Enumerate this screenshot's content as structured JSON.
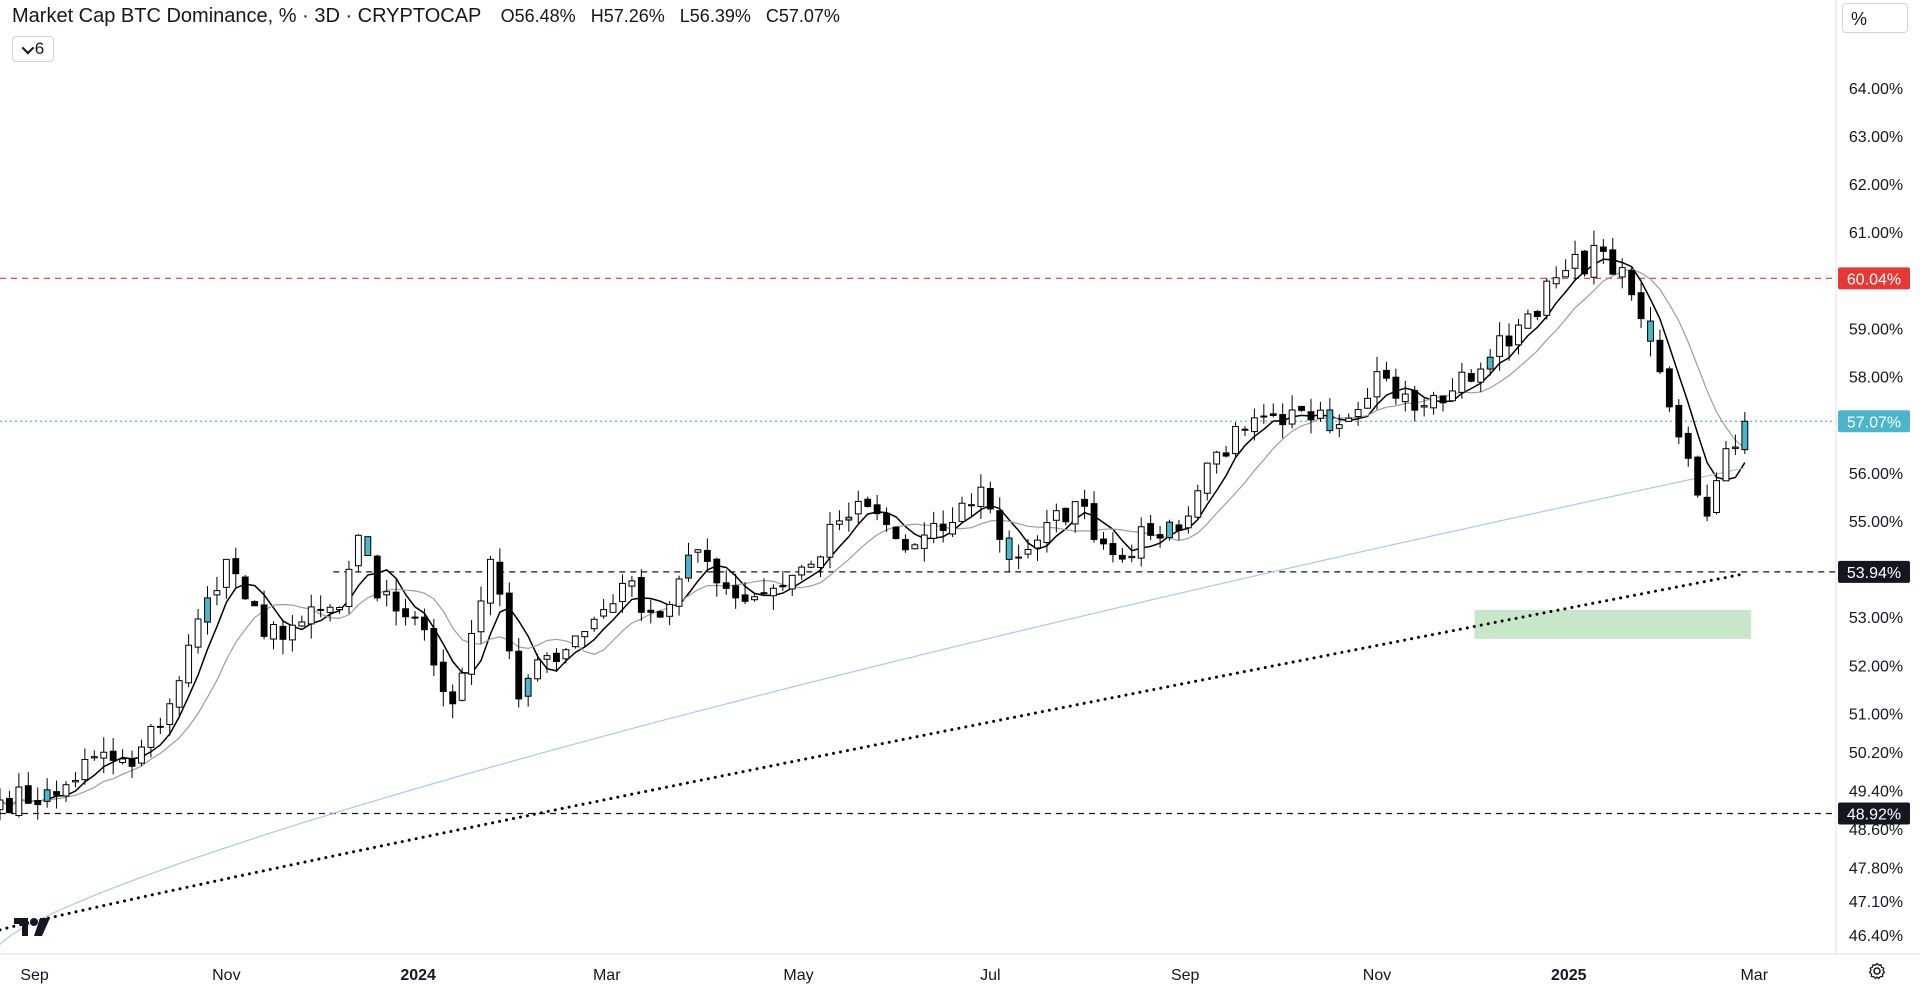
{
  "header": {
    "symbol": "Market Cap BTC Dominance, % · 3D · CRYPTOCAP",
    "o_label": "O",
    "o": "56.48%",
    "h_label": "H",
    "h": "57.26%",
    "l_label": "L",
    "l": "56.39%",
    "c_label": "C",
    "c": "57.07%"
  },
  "indicators_toggle": {
    "count": "6"
  },
  "scale_mode": "%",
  "chart_data": {
    "type": "candlestick",
    "ylim": [
      46.0,
      65.2
    ],
    "y_ticks": [
      {
        "value": 46.4,
        "label": "46.40%"
      },
      {
        "value": 47.1,
        "label": "47.10%"
      },
      {
        "value": 47.8,
        "label": "47.80%"
      },
      {
        "value": 48.6,
        "label": "48.60%"
      },
      {
        "value": 49.4,
        "label": "49.40%"
      },
      {
        "value": 50.2,
        "label": "50.20%"
      },
      {
        "value": 51.0,
        "label": "51.00%"
      },
      {
        "value": 52.0,
        "label": "52.00%"
      },
      {
        "value": 53.0,
        "label": "53.00%"
      },
      {
        "value": 55.0,
        "label": "55.00%"
      },
      {
        "value": 56.0,
        "label": "56.00%"
      },
      {
        "value": 58.0,
        "label": "58.00%"
      },
      {
        "value": 59.0,
        "label": "59.00%"
      },
      {
        "value": 61.0,
        "label": "61.00%"
      },
      {
        "value": 62.0,
        "label": "62.00%"
      },
      {
        "value": 63.0,
        "label": "63.00%"
      },
      {
        "value": 64.0,
        "label": "64.00%"
      }
    ],
    "x_ticks": [
      {
        "date": "2023-09-01",
        "label": "Sep",
        "bold": false
      },
      {
        "date": "2023-11-01",
        "label": "Nov",
        "bold": false
      },
      {
        "date": "2024-01-01",
        "label": "2024",
        "bold": true
      },
      {
        "date": "2024-03-01",
        "label": "Mar",
        "bold": false
      },
      {
        "date": "2024-05-01",
        "label": "May",
        "bold": false
      },
      {
        "date": "2024-07-01",
        "label": "Jul",
        "bold": false
      },
      {
        "date": "2024-09-01",
        "label": "Sep",
        "bold": false
      },
      {
        "date": "2024-11-01",
        "label": "Nov",
        "bold": false
      },
      {
        "date": "2025-01-01",
        "label": "2025",
        "bold": true
      },
      {
        "date": "2025-03-01",
        "label": "Mar",
        "bold": false
      }
    ],
    "x_range": [
      "2023-08-21",
      "2025-03-27"
    ],
    "first_candle_date": "2023-08-21",
    "candle_interval_days": 3,
    "close_anchors": [
      [
        0,
        49.2
      ],
      [
        6,
        49.3
      ],
      [
        10,
        50.1
      ],
      [
        14,
        49.9
      ],
      [
        18,
        51.2
      ],
      [
        22,
        53.4
      ],
      [
        24,
        54.2
      ],
      [
        28,
        52.6
      ],
      [
        32,
        52.9
      ],
      [
        36,
        53.2
      ],
      [
        38,
        54.7
      ],
      [
        40,
        53.4
      ],
      [
        44,
        53.0
      ],
      [
        48,
        51.2
      ],
      [
        52,
        54.2
      ],
      [
        55,
        51.3
      ],
      [
        58,
        52.2
      ],
      [
        62,
        52.7
      ],
      [
        66,
        53.7
      ],
      [
        70,
        53.0
      ],
      [
        74,
        54.4
      ],
      [
        78,
        53.4
      ],
      [
        82,
        53.6
      ],
      [
        86,
        54.1
      ],
      [
        89,
        55.0
      ],
      [
        92,
        55.3
      ],
      [
        96,
        54.4
      ],
      [
        100,
        54.8
      ],
      [
        104,
        55.7
      ],
      [
        107,
        54.2
      ],
      [
        110,
        54.6
      ],
      [
        114,
        55.4
      ],
      [
        118,
        54.3
      ],
      [
        122,
        54.7
      ],
      [
        126,
        55.1
      ],
      [
        128,
        56.2
      ],
      [
        132,
        56.9
      ],
      [
        136,
        57.0
      ],
      [
        140,
        57.3
      ],
      [
        142,
        57.0
      ],
      [
        146,
        58.1
      ],
      [
        150,
        57.3
      ],
      [
        154,
        57.7
      ],
      [
        158,
        58.4
      ],
      [
        162,
        59.3
      ],
      [
        166,
        60.2
      ],
      [
        170,
        60.6
      ],
      [
        173,
        59.7
      ],
      [
        176,
        58.1
      ],
      [
        179,
        56.3
      ],
      [
        181,
        55.1
      ],
      [
        183,
        56.5
      ],
      [
        185,
        57.07
      ]
    ],
    "volatility": 0.35,
    "moving_averages": [
      {
        "period": 5,
        "color": "#000000",
        "width": 1.5
      },
      {
        "period": 10,
        "color": "#9e9e9e",
        "width": 1.2
      },
      {
        "period": 60,
        "color": "#a9c8ec",
        "width": 1.2
      },
      {
        "period": 120,
        "color": "#000000",
        "width": 3,
        "dotted": true
      }
    ],
    "horizontal_lines": [
      {
        "value": 60.04,
        "label": "60.04%",
        "color": "#e53935",
        "style": "dashed",
        "label_bg": "#e53935"
      },
      {
        "value": 57.07,
        "label": "57.07%",
        "color": "#4fb8c9",
        "style": "dotted",
        "label_bg": "#4cb5cb"
      },
      {
        "value": 53.94,
        "label": "53.94%",
        "color": "#131722",
        "style": "dashed",
        "label_bg": "#131722",
        "start_date": "2023-12-05"
      },
      {
        "value": 48.92,
        "label": "48.92%",
        "color": "#131722",
        "style": "dashed",
        "label_bg": "#131722"
      }
    ],
    "zone": {
      "from_date": "2024-12-02",
      "to_date": "2025-02-28",
      "low": 52.55,
      "high": 53.15,
      "color": "#c8e6c9"
    },
    "colors": {
      "up_body": "#ffffff",
      "down_body": "#000000",
      "highlight": "#4cb5cb",
      "wick": "#000000"
    }
  }
}
